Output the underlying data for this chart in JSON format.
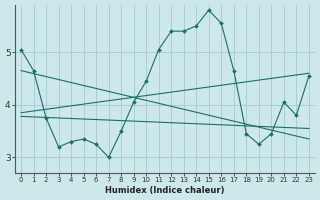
{
  "xlabel": "Humidex (Indice chaleur)",
  "background_color": "#cce8ea",
  "grid_color": "#a8cfd2",
  "line_color": "#1a6e6a",
  "xlim": [
    -0.5,
    23.5
  ],
  "ylim": [
    2.7,
    5.9
  ],
  "yticks": [
    3,
    4,
    5
  ],
  "xticks": [
    0,
    1,
    2,
    3,
    4,
    5,
    6,
    7,
    8,
    9,
    10,
    11,
    12,
    13,
    14,
    15,
    16,
    17,
    18,
    19,
    20,
    21,
    22,
    23
  ],
  "line1_x": [
    0,
    1,
    2,
    3,
    4,
    5,
    6,
    7,
    8,
    9,
    10,
    11,
    12,
    13,
    14,
    15,
    16,
    17,
    18,
    19,
    20,
    21,
    22,
    23
  ],
  "line1_y": [
    5.05,
    4.65,
    3.75,
    3.2,
    3.3,
    3.35,
    3.25,
    3.0,
    3.5,
    4.05,
    4.45,
    5.05,
    5.4,
    5.4,
    5.5,
    5.8,
    5.55,
    4.65,
    3.45,
    3.25,
    3.45,
    4.05,
    3.8,
    4.55
  ],
  "line2_x": [
    0,
    23
  ],
  "line2_y": [
    3.85,
    4.6
  ],
  "line3_x": [
    0,
    23
  ],
  "line3_y": [
    4.65,
    3.35
  ],
  "line4_x": [
    0,
    23
  ],
  "line4_y": [
    3.78,
    3.55
  ]
}
